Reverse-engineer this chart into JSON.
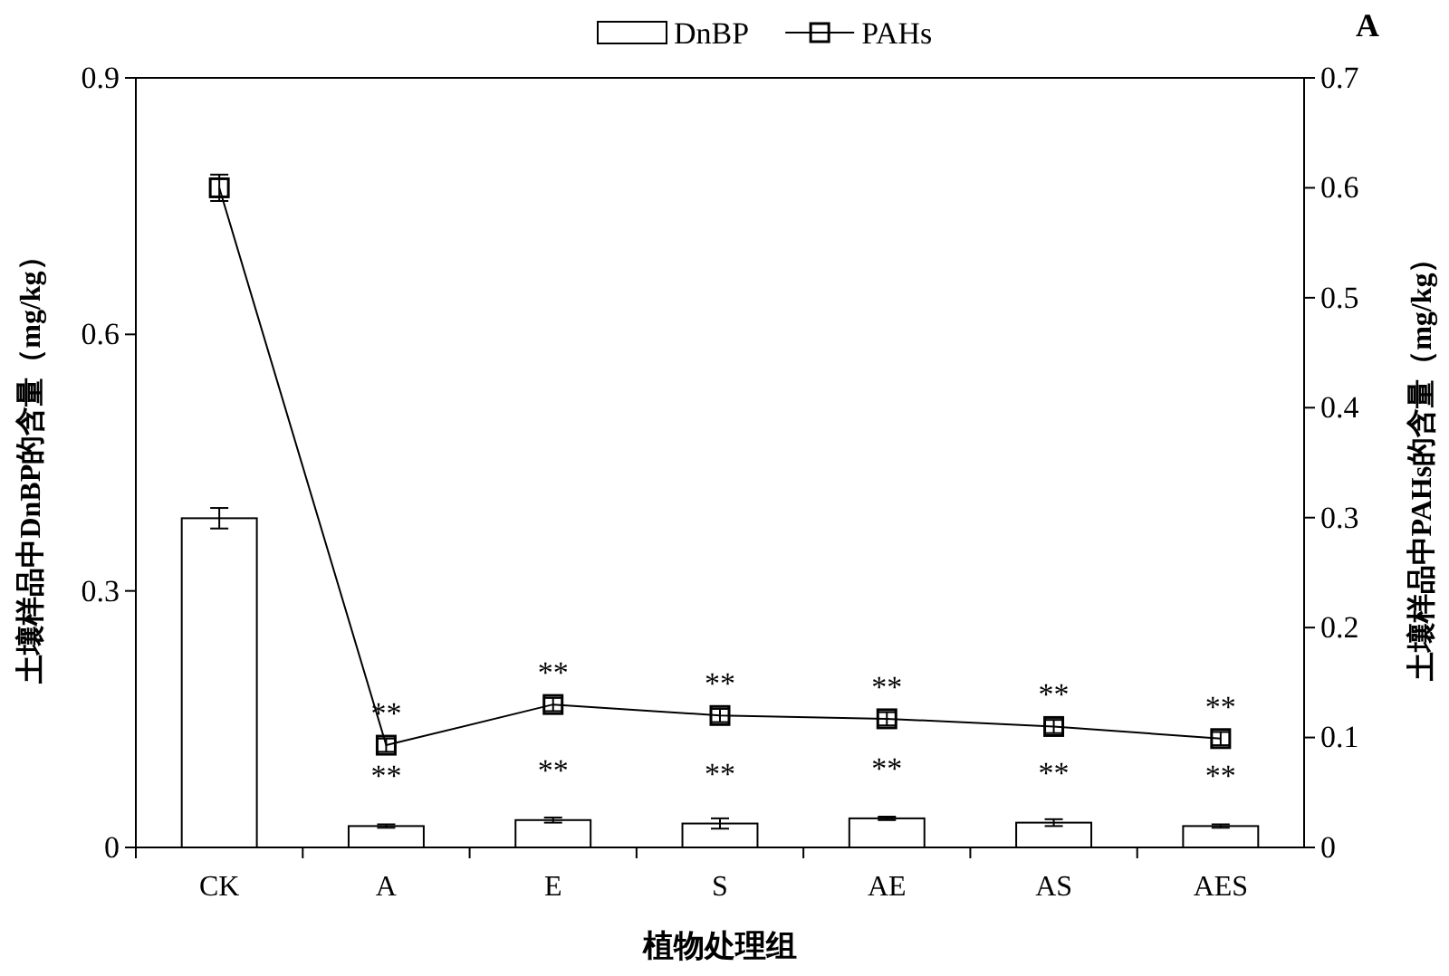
{
  "chart_data": {
    "type": "bar",
    "categories": [
      "CK",
      "A",
      "E",
      "S",
      "AE",
      "AS",
      "AES"
    ],
    "series": [
      {
        "name": "DnBP",
        "color": "#ffffff",
        "values": [
          0.385,
          0.025,
          0.032,
          0.028,
          0.034,
          0.029,
          0.025
        ],
        "errors": [
          0.012,
          0.002,
          0.003,
          0.006,
          0.002,
          0.004,
          0.002
        ]
      },
      {
        "name": "PAHs",
        "type": "line",
        "axis": "y2",
        "color": "#000000",
        "marker": "square",
        "values": [
          0.6,
          0.093,
          0.13,
          0.12,
          0.117,
          0.11,
          0.099
        ],
        "errors": [
          0.012,
          0.006,
          0.006,
          0.006,
          0.006,
          0.006,
          0.006
        ]
      }
    ],
    "xlabel": "植物处理组",
    "ylabel": "土壤样品中DnBP的含量（mg/kg）",
    "y2label": "土壤样品中PAHs的含量（mg/kg）",
    "ylim": [
      0,
      0.9
    ],
    "yticks": [
      {
        "value": 0,
        "label": "0"
      },
      0.3,
      0.6,
      0.9
    ],
    "y2lim": [
      0,
      0.7
    ],
    "y2ticks": [
      {
        "value": 0,
        "label": "0"
      },
      0.1,
      0.2,
      0.3,
      0.4,
      0.5,
      0.6,
      0.7
    ],
    "legend": "top",
    "grid": false,
    "annotations": [
      "A",
      "**",
      "**",
      "**",
      "**",
      "**",
      "**",
      "**",
      "**",
      "**",
      "**",
      "**",
      "**"
    ]
  }
}
